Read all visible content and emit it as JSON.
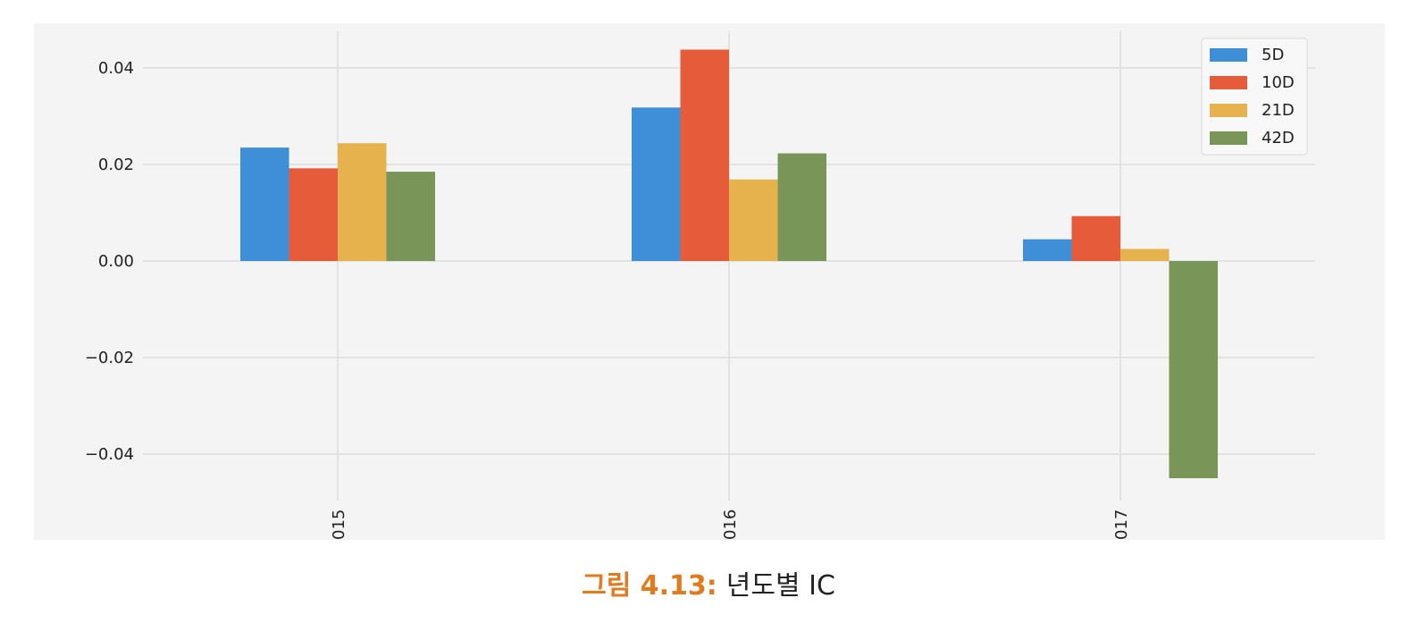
{
  "caption": {
    "label": "그림 4.13:",
    "text": "년도별 IC",
    "label_color": "#e07b1f"
  },
  "chart_data": {
    "type": "bar",
    "categories": [
      "015",
      "016",
      "017"
    ],
    "series": [
      {
        "name": "5D",
        "values": [
          0.0235,
          0.0318,
          0.0045
        ],
        "color": "#3f8fd8"
      },
      {
        "name": "10D",
        "values": [
          0.0192,
          0.0438,
          0.0093
        ],
        "color": "#e65c3a"
      },
      {
        "name": "21D",
        "values": [
          0.0244,
          0.0169,
          0.0025
        ],
        "color": "#e5b24e"
      },
      {
        "name": "42D",
        "values": [
          0.0185,
          0.0223,
          -0.045
        ],
        "color": "#7a9558"
      }
    ],
    "ylim": [
      -0.05,
      0.048
    ],
    "yticks": [
      0.04,
      0.02,
      0.0,
      -0.02,
      -0.04
    ],
    "ytick_labels": [
      "0.04",
      "0.02",
      "0.00",
      "−0.02",
      "−0.04"
    ],
    "grid": true,
    "legend_position": "top-right",
    "background": "#f4f4f4",
    "grid_color": "#dcdcdc"
  }
}
